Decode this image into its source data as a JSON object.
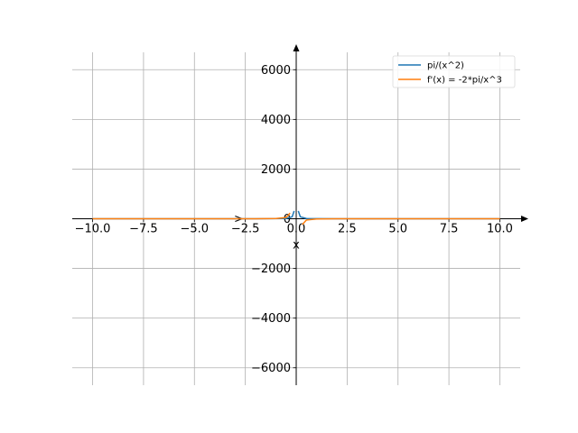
{
  "chart_data": {
    "type": "line",
    "title": "",
    "xlabel": "x",
    "ylabel": "",
    "xlim": [
      -11,
      11
    ],
    "ylim": [
      -6700,
      6700
    ],
    "x_ticks": [
      -10.0,
      -7.5,
      -5.0,
      -2.5,
      0.0,
      2.5,
      5.0,
      7.5,
      10.0
    ],
    "x_tick_labels": [
      "−10.0",
      "−7.5",
      "−5.0",
      "−2.5",
      "0.0",
      "2.5",
      "5.0",
      "7.5",
      "10.0"
    ],
    "y_ticks": [
      -6000,
      -4000,
      -2000,
      0,
      2000,
      4000,
      6000
    ],
    "y_tick_labels": [
      "−6000",
      "−4000",
      "−2000",
      "0",
      "2000",
      "4000",
      "6000"
    ],
    "grid": true,
    "legend_position": "top-right",
    "series": [
      {
        "name": "pi/(x^2)",
        "color": "#1f77b4",
        "x": [
          -10,
          -8,
          -6,
          -4,
          -3,
          -2,
          -1,
          -0.5,
          -0.2,
          -0.1,
          0.1,
          0.2,
          0.5,
          1,
          2,
          3,
          4,
          6,
          8,
          10
        ],
        "y": [
          0.03,
          0.05,
          0.09,
          0.2,
          0.35,
          0.79,
          3.14,
          12.6,
          78.5,
          314,
          314,
          78.5,
          12.6,
          3.14,
          0.79,
          0.35,
          0.2,
          0.09,
          0.05,
          0.03
        ]
      },
      {
        "name": "f'(x) = -2*pi/x^3",
        "color": "#ff7f0e",
        "x": [
          -10,
          -8,
          -6,
          -4,
          -3,
          -2,
          -1,
          -0.5,
          -0.3,
          0.3,
          0.5,
          1,
          2,
          3,
          4,
          6,
          8,
          10
        ],
        "y": [
          0.006,
          0.012,
          0.03,
          0.1,
          0.23,
          0.79,
          6.28,
          50.3,
          233,
          -233,
          -50.3,
          -6.28,
          -0.79,
          -0.23,
          -0.1,
          -0.03,
          -0.012,
          -0.006
        ]
      }
    ]
  }
}
